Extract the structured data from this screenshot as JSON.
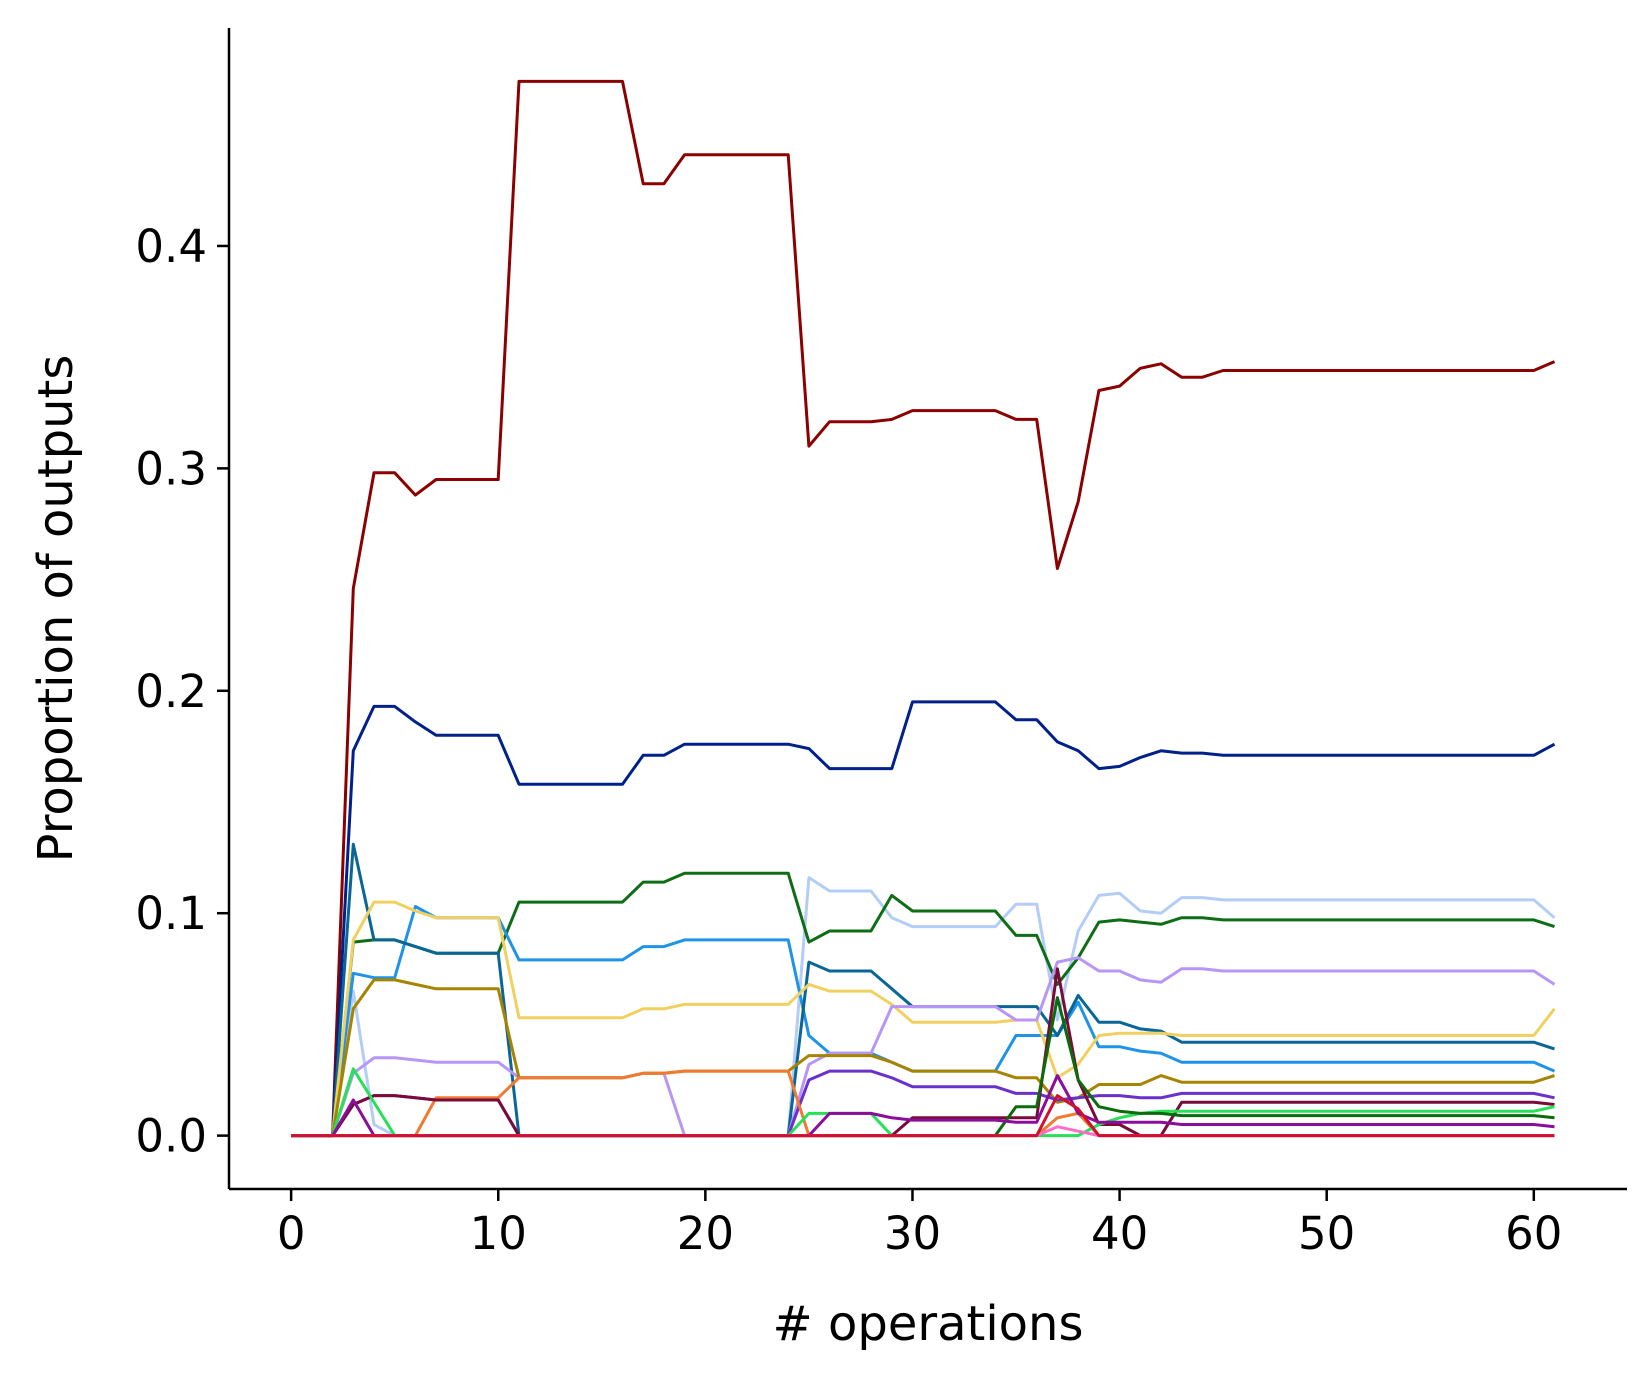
{
  "chart_data": {
    "type": "line",
    "title": "",
    "xlabel": "# operations",
    "ylabel": "Proportion of outputs",
    "xlim": [
      -3,
      64.5
    ],
    "ylim": [
      -0.024,
      0.498
    ],
    "xticks": [
      0,
      10,
      20,
      30,
      40,
      50,
      60
    ],
    "xtick_labels": [
      "0",
      "10",
      "20",
      "30",
      "40",
      "50",
      "60"
    ],
    "yticks": [
      0.0,
      0.1,
      0.2,
      0.3,
      0.4
    ],
    "ytick_labels": [
      "0.0",
      "0.1",
      "0.2",
      "0.3",
      "0.4"
    ],
    "grid": false,
    "legend": "none",
    "x": [
      0,
      1,
      2,
      3,
      4,
      5,
      6,
      7,
      8,
      9,
      10,
      11,
      12,
      13,
      14,
      15,
      16,
      17,
      18,
      19,
      20,
      21,
      22,
      23,
      24,
      25,
      26,
      27,
      28,
      29,
      30,
      31,
      32,
      33,
      34,
      35,
      36,
      37,
      38,
      39,
      40,
      41,
      42,
      43,
      44,
      45,
      46,
      47,
      48,
      49,
      50,
      51,
      52,
      53,
      54,
      55,
      56,
      57,
      58,
      59,
      60,
      61
    ],
    "series": [
      {
        "color": "#8b0000",
        "values": [
          0,
          0,
          0,
          0.246,
          0.298,
          0.298,
          0.288,
          0.295,
          0.295,
          0.295,
          0.295,
          0.474,
          0.474,
          0.474,
          0.474,
          0.474,
          0.474,
          0.428,
          0.428,
          0.441,
          0.441,
          0.441,
          0.441,
          0.441,
          0.441,
          0.31,
          0.321,
          0.321,
          0.321,
          0.322,
          0.326,
          0.326,
          0.326,
          0.326,
          0.326,
          0.322,
          0.322,
          0.255,
          0.285,
          0.335,
          0.337,
          0.345,
          0.347,
          0.341,
          0.341,
          0.344,
          0.344,
          0.344,
          0.344,
          0.344,
          0.344,
          0.344,
          0.344,
          0.344,
          0.344,
          0.344,
          0.344,
          0.344,
          0.344,
          0.344,
          0.344,
          0.348
        ]
      },
      {
        "color": "#00208a",
        "values": [
          0,
          0,
          0,
          0.173,
          0.193,
          0.193,
          0.186,
          0.18,
          0.18,
          0.18,
          0.18,
          0.158,
          0.158,
          0.158,
          0.158,
          0.158,
          0.158,
          0.171,
          0.171,
          0.176,
          0.176,
          0.176,
          0.176,
          0.176,
          0.176,
          0.174,
          0.165,
          0.165,
          0.165,
          0.165,
          0.195,
          0.195,
          0.195,
          0.195,
          0.195,
          0.187,
          0.187,
          0.177,
          0.173,
          0.165,
          0.166,
          0.17,
          0.173,
          0.172,
          0.172,
          0.171,
          0.171,
          0.171,
          0.171,
          0.171,
          0.171,
          0.171,
          0.171,
          0.171,
          0.171,
          0.171,
          0.171,
          0.171,
          0.171,
          0.171,
          0.171,
          0.176
        ]
      },
      {
        "color": "#b3cdf7",
        "values": [
          0,
          0,
          0,
          0.065,
          0.005,
          0,
          0,
          0,
          0,
          0,
          0,
          0,
          0,
          0,
          0,
          0,
          0,
          0,
          0,
          0,
          0,
          0,
          0,
          0,
          0,
          0.116,
          0.11,
          0.11,
          0.11,
          0.098,
          0.094,
          0.094,
          0.094,
          0.094,
          0.094,
          0.104,
          0.104,
          0.052,
          0.092,
          0.108,
          0.109,
          0.101,
          0.1,
          0.107,
          0.107,
          0.106,
          0.106,
          0.106,
          0.106,
          0.106,
          0.106,
          0.106,
          0.106,
          0.106,
          0.106,
          0.106,
          0.106,
          0.106,
          0.106,
          0.106,
          0.106,
          0.098
        ]
      },
      {
        "color": "#0e6e16",
        "values": [
          0,
          0,
          0,
          0.087,
          0.088,
          0.088,
          0.085,
          0.082,
          0.082,
          0.082,
          0.082,
          0.105,
          0.105,
          0.105,
          0.105,
          0.105,
          0.105,
          0.114,
          0.114,
          0.118,
          0.118,
          0.118,
          0.118,
          0.118,
          0.118,
          0.087,
          0.092,
          0.092,
          0.092,
          0.108,
          0.101,
          0.101,
          0.101,
          0.101,
          0.101,
          0.09,
          0.09,
          0.068,
          0.08,
          0.096,
          0.097,
          0.096,
          0.095,
          0.098,
          0.098,
          0.097,
          0.097,
          0.097,
          0.097,
          0.097,
          0.097,
          0.097,
          0.097,
          0.097,
          0.097,
          0.097,
          0.097,
          0.097,
          0.097,
          0.097,
          0.097,
          0.094
        ]
      },
      {
        "color": "#1f93e8",
        "values": [
          0,
          0,
          0,
          0.073,
          0.071,
          0.071,
          0.103,
          0.098,
          0.098,
          0.098,
          0.098,
          0.079,
          0.079,
          0.079,
          0.079,
          0.079,
          0.079,
          0.085,
          0.085,
          0.088,
          0.088,
          0.088,
          0.088,
          0.088,
          0.088,
          0.045,
          0.037,
          0.037,
          0.037,
          0.033,
          0.029,
          0.029,
          0.029,
          0.029,
          0.029,
          0.045,
          0.045,
          0.045,
          0.06,
          0.04,
          0.04,
          0.038,
          0.037,
          0.033,
          0.033,
          0.033,
          0.033,
          0.033,
          0.033,
          0.033,
          0.033,
          0.033,
          0.033,
          0.033,
          0.033,
          0.033,
          0.033,
          0.033,
          0.033,
          0.033,
          0.033,
          0.029
        ]
      },
      {
        "color": "#0a6696",
        "values": [
          0,
          0,
          0,
          0.131,
          0.088,
          0.088,
          0.085,
          0.082,
          0.082,
          0.082,
          0.082,
          0,
          0,
          0,
          0,
          0,
          0,
          0,
          0,
          0,
          0,
          0,
          0,
          0,
          0,
          0.078,
          0.074,
          0.074,
          0.074,
          0.066,
          0.058,
          0.058,
          0.058,
          0.058,
          0.058,
          0.058,
          0.058,
          0.045,
          0.063,
          0.051,
          0.051,
          0.048,
          0.047,
          0.042,
          0.042,
          0.042,
          0.042,
          0.042,
          0.042,
          0.042,
          0.042,
          0.042,
          0.042,
          0.042,
          0.042,
          0.042,
          0.042,
          0.042,
          0.042,
          0.042,
          0.042,
          0.039
        ]
      },
      {
        "color": "#f0d060",
        "values": [
          0,
          0,
          0,
          0.088,
          0.105,
          0.105,
          0.101,
          0.098,
          0.098,
          0.098,
          0.098,
          0.053,
          0.053,
          0.053,
          0.053,
          0.053,
          0.053,
          0.057,
          0.057,
          0.059,
          0.059,
          0.059,
          0.059,
          0.059,
          0.059,
          0.068,
          0.065,
          0.065,
          0.065,
          0.059,
          0.051,
          0.051,
          0.051,
          0.051,
          0.051,
          0.052,
          0.052,
          0.026,
          0.032,
          0.045,
          0.046,
          0.046,
          0.046,
          0.045,
          0.045,
          0.045,
          0.045,
          0.045,
          0.045,
          0.045,
          0.045,
          0.045,
          0.045,
          0.045,
          0.045,
          0.045,
          0.045,
          0.045,
          0.045,
          0.045,
          0.045,
          0.057
        ]
      },
      {
        "color": "#b796f6",
        "values": [
          0,
          0,
          0,
          0.028,
          0.035,
          0.035,
          0.034,
          0.033,
          0.033,
          0.033,
          0.033,
          0.026,
          0.026,
          0.026,
          0.026,
          0.026,
          0.026,
          0.028,
          0.028,
          0,
          0,
          0,
          0,
          0,
          0,
          0.032,
          0.037,
          0.037,
          0.037,
          0.058,
          0.058,
          0.058,
          0.058,
          0.058,
          0.058,
          0.052,
          0.052,
          0.078,
          0.08,
          0.074,
          0.074,
          0.07,
          0.069,
          0.075,
          0.075,
          0.074,
          0.074,
          0.074,
          0.074,
          0.074,
          0.074,
          0.074,
          0.074,
          0.074,
          0.074,
          0.074,
          0.074,
          0.074,
          0.074,
          0.074,
          0.074,
          0.068
        ]
      },
      {
        "color": "#a68400",
        "values": [
          0,
          0,
          0,
          0.057,
          0.07,
          0.07,
          0.068,
          0.066,
          0.066,
          0.066,
          0.066,
          0.026,
          0.026,
          0.026,
          0.026,
          0.026,
          0.026,
          0.028,
          0.028,
          0.029,
          0.029,
          0.029,
          0.029,
          0.029,
          0.029,
          0.036,
          0.036,
          0.036,
          0.036,
          0.033,
          0.029,
          0.029,
          0.029,
          0.029,
          0.029,
          0.026,
          0.026,
          0.015,
          0.017,
          0.023,
          0.023,
          0.023,
          0.027,
          0.024,
          0.024,
          0.024,
          0.024,
          0.024,
          0.024,
          0.024,
          0.024,
          0.024,
          0.024,
          0.024,
          0.024,
          0.024,
          0.024,
          0.024,
          0.024,
          0.024,
          0.024,
          0.027
        ]
      },
      {
        "color": "#6a30cc",
        "values": [
          0,
          0,
          0,
          0.014,
          0.018,
          0.018,
          0.017,
          0.016,
          0.016,
          0.016,
          0.016,
          0,
          0,
          0,
          0,
          0,
          0,
          0,
          0,
          0,
          0,
          0,
          0,
          0,
          0,
          0.025,
          0.029,
          0.029,
          0.029,
          0.026,
          0.022,
          0.022,
          0.022,
          0.022,
          0.022,
          0.019,
          0.019,
          0.016,
          0.017,
          0.018,
          0.018,
          0.017,
          0.017,
          0.019,
          0.019,
          0.019,
          0.019,
          0.019,
          0.019,
          0.019,
          0.019,
          0.019,
          0.019,
          0.019,
          0.019,
          0.019,
          0.019,
          0.019,
          0.019,
          0.019,
          0.019,
          0.017
        ]
      },
      {
        "color": "#f07a30",
        "values": [
          0,
          0,
          0,
          0,
          0,
          0,
          0,
          0.017,
          0.017,
          0.017,
          0.017,
          0.026,
          0.026,
          0.026,
          0.026,
          0.026,
          0.026,
          0.028,
          0.028,
          0.029,
          0.029,
          0.029,
          0.029,
          0.029,
          0.029,
          0,
          0,
          0,
          0,
          0,
          0,
          0,
          0,
          0,
          0,
          0,
          0,
          0.008,
          0.01,
          0,
          0,
          0,
          0,
          0,
          0,
          0,
          0,
          0,
          0,
          0,
          0,
          0,
          0,
          0,
          0,
          0,
          0,
          0,
          0,
          0,
          0,
          0
        ]
      },
      {
        "color": "#7a0a3a",
        "values": [
          0,
          0,
          0,
          0.014,
          0.018,
          0.018,
          0.017,
          0.016,
          0.016,
          0.016,
          0.016,
          0,
          0,
          0,
          0,
          0,
          0,
          0,
          0,
          0,
          0,
          0,
          0,
          0,
          0,
          0,
          0,
          0,
          0,
          0,
          0.008,
          0.008,
          0.008,
          0.008,
          0.008,
          0.008,
          0.008,
          0.075,
          0.025,
          0.005,
          0.005,
          0,
          0,
          0.015,
          0.015,
          0.015,
          0.015,
          0.015,
          0.015,
          0.015,
          0.015,
          0.015,
          0.015,
          0.015,
          0.015,
          0.015,
          0.015,
          0.015,
          0.015,
          0.015,
          0.015,
          0.014
        ]
      },
      {
        "color": "#26e05a",
        "values": [
          0,
          0,
          0,
          0.03,
          0.015,
          0,
          0,
          0,
          0,
          0,
          0,
          0,
          0,
          0,
          0,
          0,
          0,
          0,
          0,
          0,
          0,
          0,
          0,
          0,
          0,
          0.01,
          0.01,
          0.01,
          0.01,
          0,
          0,
          0,
          0,
          0,
          0,
          0,
          0,
          0,
          0,
          0.005,
          0.008,
          0.01,
          0.011,
          0.011,
          0.011,
          0.011,
          0.011,
          0.011,
          0.011,
          0.011,
          0.011,
          0.011,
          0.011,
          0.011,
          0.011,
          0.011,
          0.011,
          0.011,
          0.011,
          0.011,
          0.011,
          0.013
        ]
      },
      {
        "color": "#0b6b0b",
        "values": [
          0,
          0,
          0,
          0,
          0,
          0,
          0,
          0,
          0,
          0,
          0,
          0,
          0,
          0,
          0,
          0,
          0,
          0,
          0,
          0,
          0,
          0,
          0,
          0,
          0,
          0,
          0,
          0,
          0,
          0,
          0,
          0,
          0,
          0,
          0,
          0.013,
          0.013,
          0.062,
          0.025,
          0.013,
          0.011,
          0.01,
          0.01,
          0.009,
          0.009,
          0.009,
          0.009,
          0.009,
          0.009,
          0.009,
          0.009,
          0.009,
          0.009,
          0.009,
          0.009,
          0.009,
          0.009,
          0.009,
          0.009,
          0.009,
          0.009,
          0.008
        ]
      },
      {
        "color": "#8a0e9a",
        "values": [
          0,
          0,
          0,
          0.016,
          0,
          0,
          0,
          0,
          0,
          0,
          0,
          0,
          0,
          0,
          0,
          0,
          0,
          0,
          0,
          0,
          0,
          0,
          0,
          0,
          0,
          0,
          0.01,
          0.01,
          0.01,
          0.008,
          0.007,
          0.007,
          0.007,
          0.007,
          0.007,
          0.006,
          0.006,
          0.027,
          0.01,
          0.006,
          0.006,
          0.006,
          0.006,
          0.005,
          0.005,
          0.005,
          0.005,
          0.005,
          0.005,
          0.005,
          0.005,
          0.005,
          0.005,
          0.005,
          0.005,
          0.005,
          0.005,
          0.005,
          0.005,
          0.005,
          0.005,
          0.004
        ]
      },
      {
        "color": "#ff6ec7",
        "values": [
          0,
          0,
          0,
          0,
          0,
          0,
          0,
          0,
          0,
          0,
          0,
          0,
          0,
          0,
          0,
          0,
          0,
          0,
          0,
          0,
          0,
          0,
          0,
          0,
          0,
          0,
          0,
          0,
          0,
          0,
          0,
          0,
          0,
          0,
          0,
          0,
          0,
          0.004,
          0.002,
          0,
          0,
          0,
          0,
          0,
          0,
          0,
          0,
          0,
          0,
          0,
          0,
          0,
          0,
          0,
          0,
          0,
          0,
          0,
          0,
          0,
          0,
          0
        ]
      },
      {
        "color": "#d01030",
        "values": [
          0,
          0,
          0,
          0,
          0,
          0,
          0,
          0,
          0,
          0,
          0,
          0,
          0,
          0,
          0,
          0,
          0,
          0,
          0,
          0,
          0,
          0,
          0,
          0,
          0,
          0,
          0,
          0,
          0,
          0,
          0,
          0,
          0,
          0,
          0,
          0,
          0,
          0.018,
          0.012,
          0,
          0,
          0,
          0,
          0,
          0,
          0,
          0,
          0,
          0,
          0,
          0,
          0,
          0,
          0,
          0,
          0,
          0,
          0,
          0,
          0,
          0,
          0
        ]
      }
    ]
  }
}
